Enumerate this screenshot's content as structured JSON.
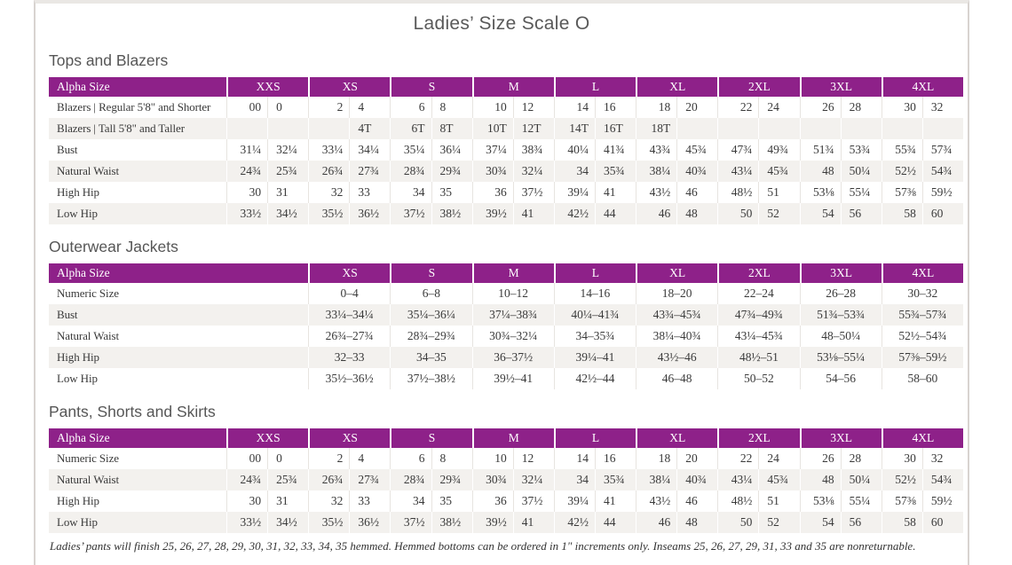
{
  "title": "Ladies’ Size Scale O",
  "colors": {
    "header_bg": "#8e2189",
    "header_text": "#ffffff",
    "row_stripe": "#f3f1ee",
    "heading_text": "#595959"
  },
  "sections": [
    {
      "heading": "Tops and Blazers",
      "table": {
        "label_header": "Alpha Size",
        "paired": true,
        "size_headers": [
          "XXS",
          "XS",
          "S",
          "M",
          "L",
          "XL",
          "2XL",
          "3XL",
          "4XL"
        ],
        "rows": [
          {
            "label": "Blazers | Regular 5'8\" and Shorter",
            "values": [
              "00",
              "0",
              "2",
              "4",
              "6",
              "8",
              "10",
              "12",
              "14",
              "16",
              "18",
              "20",
              "22",
              "24",
              "26",
              "28",
              "30",
              "32"
            ]
          },
          {
            "label": "Blazers | Tall 5'8\" and Taller",
            "values": [
              "",
              "",
              "",
              "4T",
              "6T",
              "8T",
              "10T",
              "12T",
              "14T",
              "16T",
              "18T",
              "",
              "",
              "",
              "",
              "",
              "",
              ""
            ]
          },
          {
            "label": "Bust",
            "values": [
              "31¼",
              "32¼",
              "33¼",
              "34¼",
              "35¼",
              "36¼",
              "37¼",
              "38¾",
              "40¼",
              "41¾",
              "43¾",
              "45¾",
              "47¾",
              "49¾",
              "51¾",
              "53¾",
              "55¾",
              "57¾"
            ]
          },
          {
            "label": "Natural Waist",
            "values": [
              "24¾",
              "25¾",
              "26¾",
              "27¾",
              "28¾",
              "29¾",
              "30¾",
              "32¼",
              "34",
              "35¾",
              "38¼",
              "40¾",
              "43¼",
              "45¾",
              "48",
              "50¼",
              "52½",
              "54¾"
            ]
          },
          {
            "label": "High Hip",
            "values": [
              "30",
              "31",
              "32",
              "33",
              "34",
              "35",
              "36",
              "37½",
              "39¼",
              "41",
              "43½",
              "46",
              "48½",
              "51",
              "53⅛",
              "55¼",
              "57⅜",
              "59½"
            ]
          },
          {
            "label": "Low Hip",
            "values": [
              "33½",
              "34½",
              "35½",
              "36½",
              "37½",
              "38½",
              "39½",
              "41",
              "42½",
              "44",
              "46",
              "48",
              "50",
              "52",
              "54",
              "56",
              "58",
              "60"
            ]
          }
        ]
      }
    },
    {
      "heading": "Outerwear Jackets",
      "table": {
        "label_header": "Alpha Size",
        "paired": false,
        "size_headers": [
          "XS",
          "S",
          "M",
          "L",
          "XL",
          "2XL",
          "3XL",
          "4XL"
        ],
        "rows": [
          {
            "label": "Numeric Size",
            "values": [
              "0–4",
              "6–8",
              "10–12",
              "14–16",
              "18–20",
              "22–24",
              "26–28",
              "30–32"
            ]
          },
          {
            "label": "Bust",
            "values": [
              "33¼–34¼",
              "35¼–36¼",
              "37¼–38¾",
              "40¼–41¾",
              "43¾–45¾",
              "47¾–49¾",
              "51¾–53¾",
              "55¾–57¾"
            ]
          },
          {
            "label": "Natural Waist",
            "values": [
              "26¾–27¾",
              "28¾–29¾",
              "30¾–32¼",
              "34–35¾",
              "38¼–40¾",
              "43¼–45¾",
              "48–50¼",
              "52½–54¾"
            ]
          },
          {
            "label": "High Hip",
            "values": [
              "32–33",
              "34–35",
              "36–37½",
              "39¼–41",
              "43½–46",
              "48½–51",
              "53⅛–55¼",
              "57⅜–59½"
            ]
          },
          {
            "label": "Low Hip",
            "values": [
              "35½–36½",
              "37½–38½",
              "39½–41",
              "42½–44",
              "46–48",
              "50–52",
              "54–56",
              "58–60"
            ]
          }
        ]
      }
    },
    {
      "heading": "Pants, Shorts and Skirts",
      "table": {
        "label_header": "Alpha Size",
        "paired": true,
        "size_headers": [
          "XXS",
          "XS",
          "S",
          "M",
          "L",
          "XL",
          "2XL",
          "3XL",
          "4XL"
        ],
        "rows": [
          {
            "label": "Numeric Size",
            "values": [
              "00",
              "0",
              "2",
              "4",
              "6",
              "8",
              "10",
              "12",
              "14",
              "16",
              "18",
              "20",
              "22",
              "24",
              "26",
              "28",
              "30",
              "32"
            ]
          },
          {
            "label": "Natural Waist",
            "values": [
              "24¾",
              "25¾",
              "26¾",
              "27¾",
              "28¾",
              "29¾",
              "30¾",
              "32¼",
              "34",
              "35¾",
              "38¼",
              "40¾",
              "43¼",
              "45¾",
              "48",
              "50¼",
              "52½",
              "54¾"
            ]
          },
          {
            "label": "High Hip",
            "values": [
              "30",
              "31",
              "32",
              "33",
              "34",
              "35",
              "36",
              "37½",
              "39¼",
              "41",
              "43½",
              "46",
              "48½",
              "51",
              "53⅛",
              "55¼",
              "57⅜",
              "59½"
            ]
          },
          {
            "label": "Low Hip",
            "values": [
              "33½",
              "34½",
              "35½",
              "36½",
              "37½",
              "38½",
              "39½",
              "41",
              "42½",
              "44",
              "46",
              "48",
              "50",
              "52",
              "54",
              "56",
              "58",
              "60"
            ]
          }
        ]
      }
    }
  ],
  "footnote": "Ladies’ pants will finish 25, 26, 27, 28, 29, 30, 31, 32, 33, 34, 35 hemmed. Hemmed bottoms can be ordered in 1\" increments only. Inseams 25, 26, 27, 29, 31, 33 and 35 are nonreturnable."
}
